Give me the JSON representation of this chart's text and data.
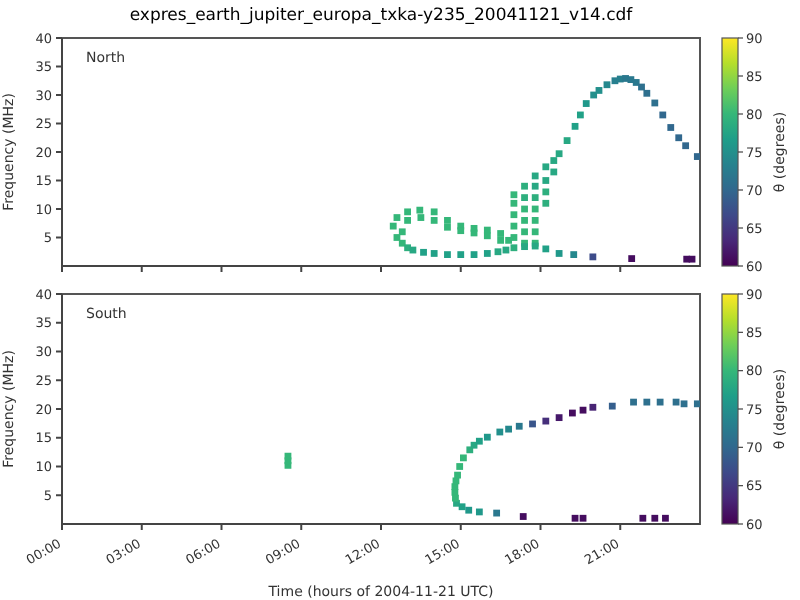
{
  "chart_data": [
    {
      "type": "scatter",
      "title": "expres_earth_jupiter_europa_txka-y235_20041121_v14.cdf",
      "ylabel": "Frequency (MHz)",
      "clabel": "θ (degrees)",
      "annotations": [
        "North"
      ],
      "marker": "square",
      "tick_labels": "y",
      "xlim": [
        0,
        24
      ],
      "xticks": [
        {
          "value": 0,
          "label": null
        },
        {
          "value": 3,
          "label": null
        },
        {
          "value": 6,
          "label": null
        },
        {
          "value": 9,
          "label": null
        },
        {
          "value": 12,
          "label": null
        },
        {
          "value": 15,
          "label": null
        },
        {
          "value": 18,
          "label": null
        },
        {
          "value": 21,
          "label": null
        }
      ],
      "ylim": [
        0,
        40
      ],
      "yticks": [
        5,
        10,
        15,
        20,
        25,
        30,
        35,
        40
      ],
      "clim": [
        60,
        90
      ],
      "cticks": [
        60,
        65,
        70,
        75,
        80,
        85,
        90
      ],
      "x": [
        18.7,
        19.0,
        19.3,
        19.5,
        19.72,
        20.0,
        20.2,
        20.5,
        20.8,
        21.0,
        21.2,
        21.4,
        21.6,
        21.8,
        22.0,
        22.3,
        22.6,
        22.9,
        23.2,
        23.46,
        23.9,
        17.0,
        17.0,
        17.0,
        17.0,
        17.0,
        17.4,
        17.4,
        17.4,
        17.4,
        17.4,
        17.4,
        17.8,
        17.8,
        17.8,
        17.8,
        17.8,
        17.8,
        17.8,
        18.2,
        18.2,
        18.2,
        18.2,
        18.5,
        18.5,
        12.46,
        12.6,
        13.0,
        13.46,
        14.0,
        14.5,
        15.0,
        15.5,
        16.0,
        16.5,
        12.8,
        13.0,
        13.5,
        14.0,
        14.5,
        15.0,
        15.5,
        16.0,
        16.5,
        16.8,
        12.6,
        12.8,
        13.0,
        13.2,
        13.6,
        14.0,
        14.5,
        15.0,
        15.5,
        16.0,
        16.4,
        16.7,
        17.0,
        17.4,
        17.8,
        18.2,
        18.7,
        19.25,
        19.97,
        21.43,
        23.5,
        23.7
      ],
      "values": [
        19.7,
        22.0,
        24.5,
        26.5,
        28.5,
        30.0,
        30.8,
        31.8,
        32.5,
        32.8,
        32.9,
        32.7,
        32.2,
        31.4,
        30.3,
        28.6,
        26.5,
        24.3,
        22.5,
        21.1,
        19.2,
        5,
        7,
        9,
        11,
        12.5,
        4,
        6,
        8,
        10,
        12,
        14,
        4,
        6,
        8,
        10,
        12,
        14,
        15.8,
        11,
        13,
        15,
        17.4,
        16.5,
        18.5,
        7.0,
        8.5,
        9.5,
        9.8,
        9.5,
        8.0,
        7.0,
        6.6,
        6.3,
        5.7,
        6.0,
        8.0,
        8.5,
        8.0,
        6.8,
        6.2,
        5.8,
        5.3,
        4.5,
        4.5,
        5.0,
        4.0,
        3.2,
        2.8,
        2.4,
        2.2,
        2.0,
        2.0,
        2.0,
        2.2,
        2.5,
        2.8,
        3.2,
        3.4,
        3.5,
        3.0,
        2.2,
        2.0,
        1.6,
        1.3,
        1.2,
        1.2
      ],
      "cvalues": [
        78,
        78,
        77,
        77,
        76,
        75,
        75,
        74,
        73,
        73,
        72,
        72,
        72,
        71,
        71,
        71,
        70,
        70,
        70,
        70,
        70,
        80,
        80,
        80,
        80,
        80,
        80,
        80,
        80,
        80,
        79,
        79,
        80,
        80,
        80,
        80,
        79,
        78,
        78,
        79,
        79,
        78,
        78,
        78,
        78,
        80,
        80,
        80,
        80,
        80,
        80,
        80,
        80,
        80,
        80,
        80,
        80,
        80,
        80,
        80,
        80,
        80,
        80,
        80,
        80,
        80,
        80,
        79,
        78,
        77,
        77,
        77,
        77,
        77,
        77,
        78,
        78,
        79,
        78,
        78,
        77,
        76,
        74,
        67,
        61,
        61,
        61
      ]
    },
    {
      "type": "scatter",
      "ylabel": "Frequency (MHz)",
      "xlabel": "Time (hours of 2004-11-21 UTC)",
      "clabel": "θ (degrees)",
      "annotations": [
        "South"
      ],
      "marker": "square",
      "xlim": [
        0,
        24
      ],
      "xticks": [
        {
          "value": 0,
          "label": "00:00"
        },
        {
          "value": 3,
          "label": "03:00"
        },
        {
          "value": 6,
          "label": "06:00"
        },
        {
          "value": 9,
          "label": "09:00"
        },
        {
          "value": 12,
          "label": "12:00"
        },
        {
          "value": 15,
          "label": "15:00"
        },
        {
          "value": 18,
          "label": "18:00"
        },
        {
          "value": 21,
          "label": "21:00"
        }
      ],
      "ylim": [
        0,
        40
      ],
      "yticks": [
        5,
        10,
        15,
        20,
        25,
        30,
        35,
        40
      ],
      "clim": [
        60,
        90
      ],
      "cticks": [
        60,
        65,
        70,
        75,
        80,
        85,
        90
      ],
      "x": [
        8.5,
        8.5,
        8.5,
        14.84,
        14.8,
        14.78,
        14.78,
        14.82,
        14.88,
        14.96,
        15.1,
        15.34,
        15.5,
        15.7,
        16.0,
        16.47,
        16.8,
        17.2,
        17.7,
        18.2,
        18.7,
        19.2,
        19.6,
        19.97,
        20.7,
        21.5,
        22.0,
        22.5,
        23.1,
        23.4,
        23.9,
        15.05,
        15.3,
        15.7,
        16.35,
        17.35,
        19.3,
        19.6,
        21.85,
        22.3,
        22.7
      ],
      "values": [
        10.2,
        11.0,
        11.8,
        3.6,
        4.5,
        5.5,
        6.5,
        7.5,
        8.5,
        10.0,
        11.5,
        12.9,
        13.7,
        14.4,
        15.1,
        16.0,
        16.5,
        17.0,
        17.4,
        17.9,
        18.5,
        19.3,
        19.8,
        20.3,
        20.5,
        21.2,
        21.2,
        21.2,
        21.2,
        20.9,
        20.9,
        3.0,
        2.4,
        2.1,
        1.9,
        1.3,
        1.0,
        1.0,
        1.0,
        1.0,
        1.0
      ],
      "cvalues": [
        80,
        80,
        80,
        78,
        80,
        80,
        80,
        80,
        80,
        80,
        80,
        79,
        78,
        77,
        76,
        75,
        74,
        72,
        68,
        64,
        62,
        61,
        61,
        63,
        69,
        71,
        71,
        71,
        71,
        71,
        71,
        77,
        76,
        76,
        72,
        61,
        61,
        61,
        61,
        61,
        61
      ]
    }
  ]
}
